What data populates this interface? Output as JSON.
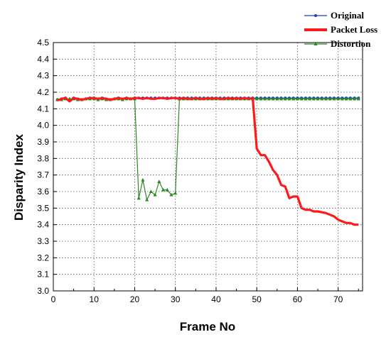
{
  "chart_data": {
    "type": "line",
    "xlabel": "Frame No",
    "ylabel": "Disparity Index",
    "xlim": [
      0,
      76
    ],
    "ylim": [
      3.0,
      4.5
    ],
    "xticks": [
      0,
      10,
      20,
      30,
      40,
      50,
      60,
      70
    ],
    "yticks": [
      3.0,
      3.1,
      3.2,
      3.3,
      3.4,
      3.5,
      3.6,
      3.7,
      3.8,
      3.9,
      4.0,
      4.1,
      4.2,
      4.3,
      4.4,
      4.5
    ],
    "grid": true,
    "legend_position": "top-right",
    "series": [
      {
        "name": "Original",
        "color": "#1f3fbf",
        "marker": "circle",
        "x": [
          1,
          2,
          3,
          4,
          5,
          6,
          7,
          8,
          9,
          10,
          11,
          12,
          13,
          14,
          15,
          16,
          17,
          18,
          19,
          20,
          21,
          22,
          23,
          24,
          25,
          26,
          27,
          28,
          29,
          30,
          31,
          32,
          33,
          34,
          35,
          36,
          37,
          38,
          39,
          40,
          41,
          42,
          43,
          44,
          45,
          46,
          47,
          48,
          49,
          50,
          51,
          52,
          53,
          54,
          55,
          56,
          57,
          58,
          59,
          60,
          61,
          62,
          63,
          64,
          65,
          66,
          67,
          68,
          69,
          70,
          71,
          72,
          73,
          74,
          75
        ],
        "y": [
          4.155,
          4.16,
          4.165,
          4.15,
          4.165,
          4.16,
          4.155,
          4.16,
          4.165,
          4.165,
          4.16,
          4.165,
          4.16,
          4.155,
          4.16,
          4.165,
          4.16,
          4.165,
          4.16,
          4.165,
          4.165,
          4.165,
          4.165,
          4.165,
          4.165,
          4.165,
          4.165,
          4.165,
          4.165,
          4.165,
          4.165,
          4.165,
          4.165,
          4.165,
          4.165,
          4.165,
          4.165,
          4.165,
          4.165,
          4.165,
          4.165,
          4.165,
          4.165,
          4.165,
          4.165,
          4.165,
          4.165,
          4.165,
          4.165,
          4.165,
          4.165,
          4.165,
          4.165,
          4.165,
          4.165,
          4.165,
          4.165,
          4.165,
          4.165,
          4.165,
          4.165,
          4.165,
          4.165,
          4.165,
          4.165,
          4.165,
          4.165,
          4.165,
          4.165,
          4.165,
          4.165,
          4.165,
          4.165,
          4.165,
          4.165
        ]
      },
      {
        "name": "Packet Loss",
        "color": "#ff1a1a",
        "marker": "none",
        "x": [
          1,
          2,
          3,
          4,
          5,
          6,
          7,
          8,
          9,
          10,
          11,
          12,
          13,
          14,
          15,
          16,
          17,
          18,
          19,
          20,
          21,
          22,
          23,
          24,
          25,
          26,
          27,
          28,
          29,
          30,
          31,
          32,
          33,
          34,
          35,
          36,
          37,
          38,
          39,
          40,
          41,
          42,
          43,
          44,
          45,
          46,
          47,
          48,
          49,
          50,
          51,
          52,
          53,
          54,
          55,
          56,
          57,
          58,
          59,
          60,
          61,
          62,
          63,
          64,
          65,
          66,
          67,
          68,
          69,
          70,
          71,
          72,
          73,
          74,
          75
        ],
        "y": [
          4.15,
          4.16,
          4.165,
          4.145,
          4.165,
          4.16,
          4.155,
          4.16,
          4.165,
          4.165,
          4.16,
          4.165,
          4.16,
          4.155,
          4.16,
          4.165,
          4.16,
          4.165,
          4.16,
          4.165,
          4.165,
          4.16,
          4.165,
          4.16,
          4.16,
          4.165,
          4.165,
          4.16,
          4.165,
          4.165,
          4.16,
          4.165,
          4.16,
          4.16,
          4.165,
          4.16,
          4.16,
          4.165,
          4.16,
          4.165,
          4.16,
          4.16,
          4.165,
          4.16,
          4.165,
          4.16,
          4.165,
          4.16,
          4.165,
          3.86,
          3.82,
          3.82,
          3.78,
          3.73,
          3.7,
          3.64,
          3.63,
          3.56,
          3.57,
          3.57,
          3.5,
          3.49,
          3.49,
          3.48,
          3.48,
          3.475,
          3.47,
          3.46,
          3.45,
          3.43,
          3.42,
          3.41,
          3.41,
          3.4,
          3.4
        ]
      },
      {
        "name": "Distortion",
        "color": "#2a8a1f",
        "marker": "triangle",
        "x": [
          1,
          2,
          3,
          4,
          5,
          6,
          7,
          8,
          9,
          10,
          11,
          12,
          13,
          14,
          15,
          16,
          17,
          18,
          19,
          20,
          21,
          22,
          23,
          24,
          25,
          26,
          27,
          28,
          29,
          30,
          31,
          32,
          33,
          34,
          35,
          36,
          37,
          38,
          39,
          40,
          41,
          42,
          43,
          44,
          45,
          46,
          47,
          48,
          49,
          50,
          51,
          52,
          53,
          54,
          55,
          56,
          57,
          58,
          59,
          60,
          61,
          62,
          63,
          64,
          65,
          66,
          67,
          68,
          69,
          70,
          71,
          72,
          73,
          74,
          75
        ],
        "y": [
          4.155,
          4.155,
          4.16,
          4.16,
          4.16,
          4.155,
          4.155,
          4.16,
          4.16,
          4.16,
          4.155,
          4.16,
          4.155,
          4.155,
          4.16,
          4.16,
          4.155,
          4.16,
          4.16,
          4.16,
          3.56,
          3.67,
          3.55,
          3.6,
          3.58,
          3.66,
          3.61,
          3.61,
          3.58,
          3.59,
          4.16,
          4.16,
          4.16,
          4.16,
          4.16,
          4.16,
          4.16,
          4.16,
          4.16,
          4.16,
          4.16,
          4.16,
          4.16,
          4.16,
          4.16,
          4.16,
          4.16,
          4.16,
          4.16,
          4.16,
          4.16,
          4.16,
          4.16,
          4.16,
          4.16,
          4.16,
          4.16,
          4.16,
          4.16,
          4.16,
          4.16,
          4.16,
          4.16,
          4.16,
          4.16,
          4.16,
          4.16,
          4.16,
          4.16,
          4.16,
          4.16,
          4.16,
          4.16,
          4.16,
          4.16
        ]
      }
    ]
  }
}
